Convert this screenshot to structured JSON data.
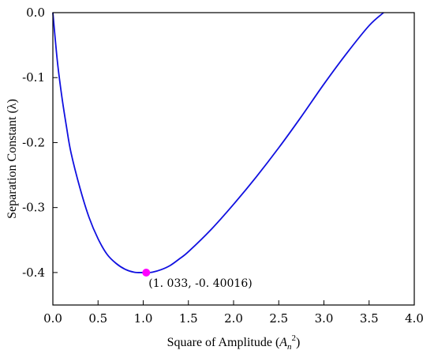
{
  "chart_data": {
    "type": "line",
    "xlabel": "Square of Amplitude (A_n^2)",
    "xlabel_parts": {
      "main": "Square of Amplitude (",
      "var": "A",
      "sub": "n",
      "sup": "2",
      "close": ")"
    },
    "ylabel": "Separation Constant (λ)",
    "xlim": [
      0.0,
      4.0
    ],
    "ylim": [
      -0.45,
      0.0
    ],
    "x_ticks": [
      0.0,
      0.5,
      1.0,
      1.5,
      2.0,
      2.5,
      3.0,
      3.5,
      4.0
    ],
    "x_tick_labels": [
      "0.0",
      "0.5",
      "1.0",
      "1.5",
      "2.0",
      "2.5",
      "3.0",
      "3.5",
      "4.0"
    ],
    "y_ticks": [
      0.0,
      -0.1,
      -0.2,
      -0.3,
      -0.4
    ],
    "y_tick_labels": [
      "0.0",
      "-0.1",
      "-0.2",
      "-0.3",
      "-0.4"
    ],
    "grid": false,
    "series": [
      {
        "color": "#1010e0",
        "x": [
          0.0,
          0.05,
          0.1,
          0.15,
          0.2,
          0.3,
          0.4,
          0.5,
          0.6,
          0.7,
          0.8,
          0.9,
          1.0,
          1.033,
          1.1,
          1.2,
          1.3,
          1.4,
          1.5,
          1.75,
          2.0,
          2.25,
          2.5,
          2.75,
          3.0,
          3.25,
          3.5,
          3.66
        ],
        "y": [
          0.0,
          -0.075,
          -0.13,
          -0.175,
          -0.215,
          -0.27,
          -0.315,
          -0.348,
          -0.372,
          -0.386,
          -0.395,
          -0.3995,
          -0.4001,
          -0.40016,
          -0.3995,
          -0.3955,
          -0.389,
          -0.379,
          -0.368,
          -0.334,
          -0.295,
          -0.253,
          -0.208,
          -0.16,
          -0.11,
          -0.063,
          -0.02,
          0.0
        ]
      }
    ],
    "annotation": {
      "point": {
        "x": 1.033,
        "y": -0.40016,
        "color": "#ff00ff"
      },
      "text": "(1. 033, -0. 40016)"
    }
  }
}
